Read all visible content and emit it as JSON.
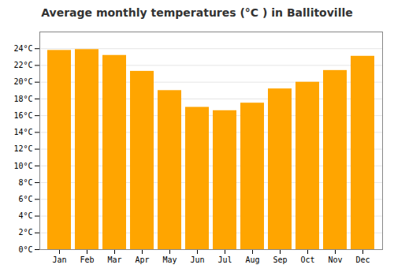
{
  "chart_data": {
    "type": "bar",
    "title": "Average monthly temperatures (°C ) in Ballitoville",
    "categories": [
      "Jan",
      "Feb",
      "Mar",
      "Apr",
      "May",
      "Jun",
      "Jul",
      "Aug",
      "Sep",
      "Oct",
      "Nov",
      "Dec"
    ],
    "values": [
      23.8,
      23.9,
      23.2,
      21.3,
      19.0,
      17.0,
      16.6,
      17.5,
      19.2,
      20.0,
      21.4,
      23.1
    ],
    "color": "#FFA500",
    "ylim": [
      0,
      26
    ],
    "yticks": [
      {
        "value": 0,
        "label": "0°C"
      },
      {
        "value": 2,
        "label": "2°C"
      },
      {
        "value": 4,
        "label": "4°C"
      },
      {
        "value": 6,
        "label": "6°C"
      },
      {
        "value": 8,
        "label": "8°C"
      },
      {
        "value": 10,
        "label": "10°C"
      },
      {
        "value": 12,
        "label": "12°C"
      },
      {
        "value": 14,
        "label": "14°C"
      },
      {
        "value": 16,
        "label": "16°C"
      },
      {
        "value": 18,
        "label": "18°C"
      },
      {
        "value": 20,
        "label": "20°C"
      },
      {
        "value": 22,
        "label": "22°C"
      },
      {
        "value": 24,
        "label": "24°C"
      }
    ],
    "grid": true
  }
}
